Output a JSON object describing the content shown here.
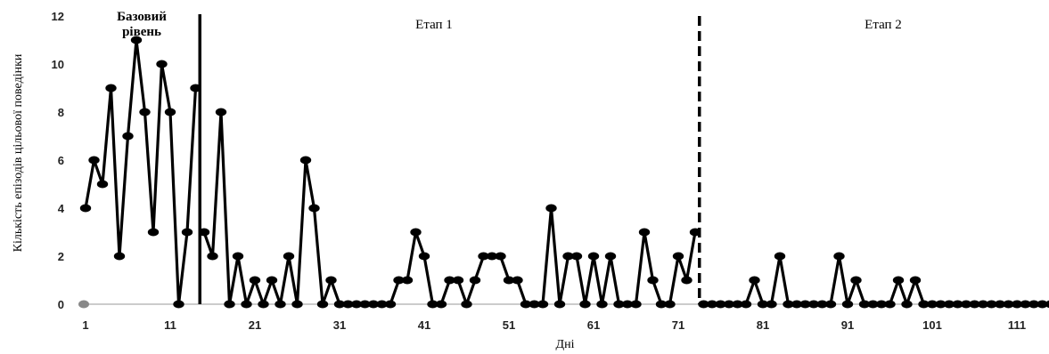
{
  "chart_data": {
    "type": "line",
    "xlabel": "Дні",
    "ylabel": "Кількість епізодів цільової поведінки",
    "ylim": [
      0,
      12
    ],
    "xlim": [
      1,
      117
    ],
    "yticks": [
      "0",
      "2",
      "4",
      "6",
      "8",
      "10",
      "12"
    ],
    "xticks": [
      "1",
      "11",
      "21",
      "31",
      "41",
      "51",
      "61",
      "71",
      "81",
      "91",
      "101",
      "111"
    ],
    "phases": [
      {
        "label": "Базовий",
        "label2": "рівень"
      },
      {
        "label": "Етап 1"
      },
      {
        "label": "Етап 2"
      }
    ],
    "phase_changes": [
      14.5,
      73.5
    ],
    "series": [
      {
        "x": [
          1,
          2,
          3,
          4,
          5,
          6,
          7,
          8,
          9,
          10,
          11,
          12,
          13,
          14
        ],
        "values": [
          4,
          6,
          5,
          9,
          2,
          7,
          11,
          8,
          3,
          10,
          8,
          0,
          3,
          9
        ]
      },
      {
        "x": [
          15,
          16,
          17,
          18,
          19,
          20,
          21,
          22,
          23,
          24,
          25,
          26,
          27,
          28,
          29,
          30,
          31,
          32,
          33,
          34,
          35,
          36,
          37,
          38,
          39,
          40,
          41,
          42,
          43,
          44,
          45,
          46,
          47,
          48,
          49,
          50,
          51,
          52,
          53,
          54,
          55,
          56,
          57,
          58,
          59,
          60,
          61,
          62,
          63,
          64,
          65,
          66,
          67,
          68,
          69,
          70,
          71,
          72,
          73
        ],
        "values": [
          3,
          2,
          8,
          0,
          2,
          0,
          1,
          0,
          1,
          0,
          2,
          0,
          6,
          4,
          0,
          1,
          0,
          0,
          0,
          0,
          0,
          0,
          0,
          1,
          1,
          3,
          2,
          0,
          0,
          1,
          1,
          0,
          1,
          2,
          2,
          2,
          1,
          1,
          0,
          0,
          0,
          4,
          0,
          2,
          2,
          0,
          2,
          0,
          2,
          0,
          0,
          0,
          3,
          1,
          0,
          0,
          2,
          1,
          3
        ]
      },
      {
        "x": [
          74,
          75,
          76,
          77,
          78,
          79,
          80,
          81,
          82,
          83,
          84,
          85,
          86,
          87,
          88,
          89,
          90,
          91,
          92,
          93,
          94,
          95,
          96,
          97,
          98,
          99,
          100,
          101,
          102,
          103,
          104,
          105,
          106,
          107,
          108,
          109,
          110,
          111,
          112,
          113,
          114,
          115,
          116,
          117
        ],
        "values": [
          0,
          0,
          0,
          0,
          0,
          0,
          1,
          0,
          0,
          2,
          0,
          0,
          0,
          0,
          0,
          0,
          2,
          0,
          1,
          0,
          0,
          0,
          0,
          1,
          0,
          1,
          0,
          0,
          0,
          0,
          0,
          0,
          0,
          0,
          0,
          0,
          0,
          0,
          0,
          0,
          0,
          0,
          0,
          0
        ]
      }
    ]
  }
}
